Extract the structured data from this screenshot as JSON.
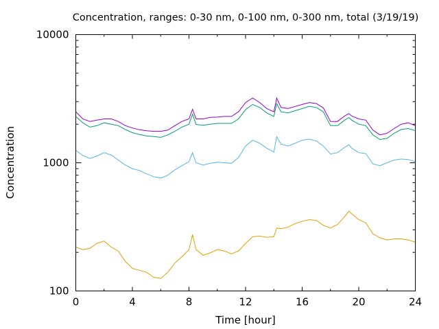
{
  "chart_data": {
    "type": "line",
    "title": "Concentration, ranges: 0-30 nm, 0-100 nm, 0-300 nm, total (3/19/19)",
    "xlabel": "Time [hour]",
    "ylabel": "Concentration",
    "xlim": [
      0,
      24
    ],
    "ylim": [
      100,
      10000
    ],
    "yscale": "log",
    "xticks": [
      "0",
      "4",
      "8",
      "12",
      "16",
      "20",
      "24"
    ],
    "yticks": [
      "100",
      "1000",
      "10000"
    ],
    "grid": false,
    "legend": "none",
    "x": [
      0,
      0.5,
      1,
      1.5,
      2,
      2.5,
      3,
      3.5,
      4,
      4.5,
      5,
      5.5,
      6,
      6.5,
      7,
      7.5,
      8,
      8.25,
      8.5,
      9,
      9.5,
      10,
      10.5,
      11,
      11.5,
      12,
      12.5,
      13,
      13.5,
      14,
      14.2,
      14.5,
      15,
      15.5,
      16,
      16.5,
      17,
      17.5,
      18,
      18.5,
      19,
      19.3,
      19.5,
      20,
      20.5,
      21,
      21.5,
      22,
      22.5,
      23,
      23.5,
      24
    ],
    "series": [
      {
        "color": "#e69f00",
        "values": [
          220,
          210,
          215,
          235,
          245,
          220,
          205,
          170,
          150,
          145,
          140,
          128,
          125,
          140,
          165,
          185,
          210,
          275,
          210,
          190,
          198,
          210,
          205,
          195,
          205,
          235,
          265,
          268,
          262,
          265,
          310,
          305,
          315,
          335,
          350,
          360,
          355,
          325,
          310,
          330,
          380,
          420,
          400,
          360,
          340,
          280,
          260,
          250,
          255,
          255,
          250,
          240
        ]
      },
      {
        "color": "#56b4e9",
        "values": [
          1250,
          1140,
          1080,
          1130,
          1200,
          1150,
          1050,
          960,
          900,
          870,
          820,
          780,
          760,
          800,
          880,
          950,
          1020,
          1200,
          1000,
          960,
          990,
          1010,
          1000,
          990,
          1100,
          1350,
          1500,
          1420,
          1300,
          1210,
          1600,
          1400,
          1350,
          1420,
          1500,
          1530,
          1480,
          1350,
          1170,
          1200,
          1320,
          1380,
          1300,
          1200,
          1180,
          980,
          950,
          1000,
          1050,
          1070,
          1060,
          1020
        ]
      },
      {
        "color": "#009e73",
        "values": [
          2300,
          2050,
          1900,
          1950,
          2050,
          2000,
          1950,
          1820,
          1720,
          1660,
          1620,
          1600,
          1580,
          1650,
          1760,
          1900,
          2000,
          2400,
          1990,
          1960,
          2000,
          2030,
          2030,
          2030,
          2200,
          2600,
          2850,
          2700,
          2450,
          2300,
          2900,
          2500,
          2450,
          2550,
          2650,
          2760,
          2700,
          2500,
          1950,
          1950,
          2150,
          2250,
          2150,
          2000,
          1950,
          1650,
          1520,
          1550,
          1700,
          1820,
          1850,
          1780
        ]
      },
      {
        "color": "#9400d3",
        "values": [
          2500,
          2200,
          2100,
          2150,
          2200,
          2200,
          2100,
          1950,
          1870,
          1810,
          1780,
          1760,
          1760,
          1800,
          1950,
          2100,
          2200,
          2620,
          2200,
          2200,
          2260,
          2270,
          2300,
          2300,
          2500,
          2950,
          3200,
          2950,
          2650,
          2500,
          3200,
          2700,
          2650,
          2750,
          2850,
          2950,
          2900,
          2680,
          2100,
          2100,
          2320,
          2420,
          2320,
          2200,
          2150,
          1800,
          1650,
          1700,
          1850,
          2000,
          2050,
          1950
        ]
      }
    ]
  }
}
